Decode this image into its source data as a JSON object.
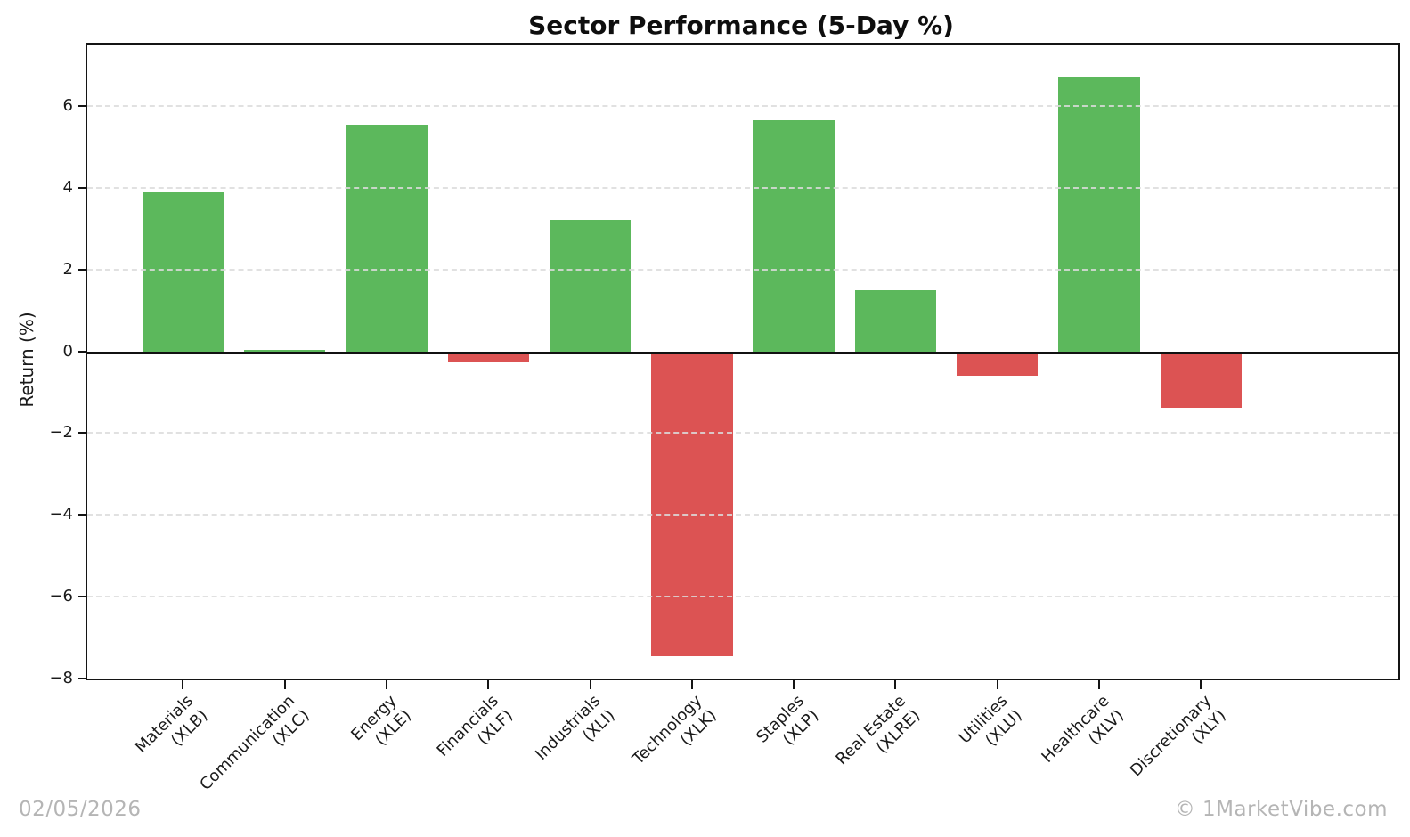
{
  "chart_data": {
    "type": "bar",
    "title": "Sector Performance (5-Day %)",
    "ylabel": "Return (%)",
    "ylim": [
      -8,
      7.5
    ],
    "yticks": [
      6,
      4,
      2,
      0,
      -2,
      -4,
      -6,
      -8
    ],
    "grid": "horizontal-dashed",
    "legend": "none",
    "bars": [
      {
        "sector": "Materials",
        "ticker": "(XLB)",
        "value": 3.88
      },
      {
        "sector": "Communication",
        "ticker": "(XLC)",
        "value": 0.04
      },
      {
        "sector": "Energy",
        "ticker": "(XLE)",
        "value": 5.55
      },
      {
        "sector": "Financials",
        "ticker": "(XLF)",
        "value": -0.25
      },
      {
        "sector": "Industrials",
        "ticker": "(XLI)",
        "value": 3.21
      },
      {
        "sector": "Technology",
        "ticker": "(XLK)",
        "value": -7.45
      },
      {
        "sector": "Staples",
        "ticker": "(XLP)",
        "value": 5.65
      },
      {
        "sector": "Real Estate",
        "ticker": "(XLRE)",
        "value": 1.5
      },
      {
        "sector": "Utilities",
        "ticker": "(XLU)",
        "value": -0.59
      },
      {
        "sector": "Healthcare",
        "ticker": "(XLV)",
        "value": 6.72
      },
      {
        "sector": "Discretionary",
        "ticker": "(XLY)",
        "value": -1.38
      }
    ],
    "colors": {
      "positive": "#5cb85c",
      "negative": "#dc5353",
      "zero_line": "#111111",
      "grid": "#dcdcdc"
    }
  },
  "footer": {
    "date": "02/05/2026",
    "credit": "© 1MarketVibe.com"
  }
}
